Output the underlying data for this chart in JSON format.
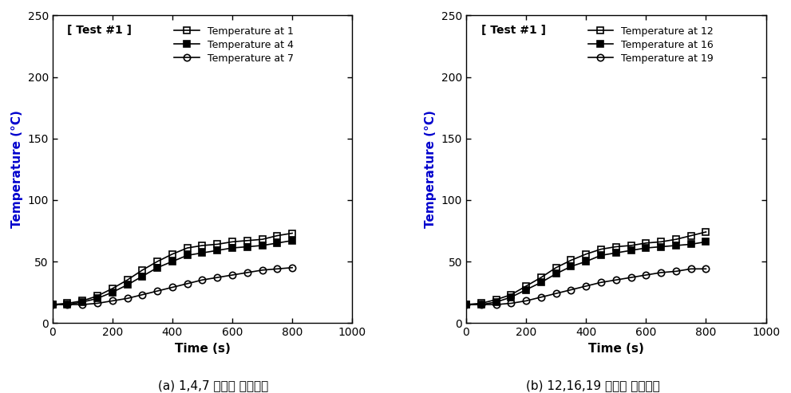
{
  "title_left": "[ Test #1 ]",
  "title_right": "[ Test #1 ]",
  "xlabel": "Time (s)",
  "ylabel": "Temperature (°C)",
  "ylabel_color": "#0000CD",
  "xlim": [
    0,
    1000
  ],
  "ylim": [
    0,
    250
  ],
  "xticks": [
    0,
    200,
    400,
    600,
    800,
    1000
  ],
  "yticks": [
    0,
    50,
    100,
    150,
    200,
    250
  ],
  "caption_left": "(a) 1,4,7 지점의 온도변화",
  "caption_right": "(b) 12,16,19 지점의 온도변화",
  "left_series": [
    {
      "label": "Temperature at 1",
      "marker": "s",
      "fillstyle": "none",
      "color": "#000000",
      "x": [
        0,
        50,
        100,
        150,
        200,
        250,
        300,
        350,
        400,
        450,
        500,
        550,
        600,
        650,
        700,
        750,
        800
      ],
      "y": [
        15,
        16,
        18,
        22,
        28,
        35,
        43,
        50,
        56,
        61,
        63,
        64,
        66,
        67,
        68,
        71,
        73
      ]
    },
    {
      "label": "Temperature at 4",
      "marker": "s",
      "fillstyle": "full",
      "color": "#000000",
      "x": [
        0,
        50,
        100,
        150,
        200,
        250,
        300,
        350,
        400,
        450,
        500,
        550,
        600,
        650,
        700,
        750,
        800
      ],
      "y": [
        15,
        15,
        17,
        20,
        25,
        31,
        38,
        45,
        50,
        55,
        57,
        59,
        61,
        62,
        63,
        65,
        67
      ]
    },
    {
      "label": "Temperature at 7",
      "marker": "o",
      "fillstyle": "none",
      "color": "#000000",
      "x": [
        0,
        50,
        100,
        150,
        200,
        250,
        300,
        350,
        400,
        450,
        500,
        550,
        600,
        650,
        700,
        750,
        800
      ],
      "y": [
        15,
        15,
        15,
        16,
        18,
        20,
        23,
        26,
        29,
        32,
        35,
        37,
        39,
        41,
        43,
        44,
        45
      ]
    }
  ],
  "right_series": [
    {
      "label": "Temperature at 12",
      "marker": "s",
      "fillstyle": "none",
      "color": "#000000",
      "x": [
        0,
        50,
        100,
        150,
        200,
        250,
        300,
        350,
        400,
        450,
        500,
        550,
        600,
        650,
        700,
        750,
        800
      ],
      "y": [
        15,
        16,
        19,
        23,
        30,
        37,
        45,
        51,
        56,
        60,
        62,
        63,
        65,
        66,
        68,
        71,
        74
      ]
    },
    {
      "label": "Temperature at 16",
      "marker": "s",
      "fillstyle": "full",
      "color": "#000000",
      "x": [
        0,
        50,
        100,
        150,
        200,
        250,
        300,
        350,
        400,
        450,
        500,
        550,
        600,
        650,
        700,
        750,
        800
      ],
      "y": [
        15,
        15,
        17,
        21,
        27,
        33,
        40,
        46,
        50,
        55,
        57,
        59,
        61,
        62,
        63,
        64,
        66
      ]
    },
    {
      "label": "Temperature at 19",
      "marker": "o",
      "fillstyle": "none",
      "color": "#000000",
      "x": [
        0,
        50,
        100,
        150,
        200,
        250,
        300,
        350,
        400,
        450,
        500,
        550,
        600,
        650,
        700,
        750,
        800
      ],
      "y": [
        15,
        15,
        15,
        16,
        18,
        21,
        24,
        27,
        30,
        33,
        35,
        37,
        39,
        41,
        42,
        44,
        44
      ]
    }
  ]
}
